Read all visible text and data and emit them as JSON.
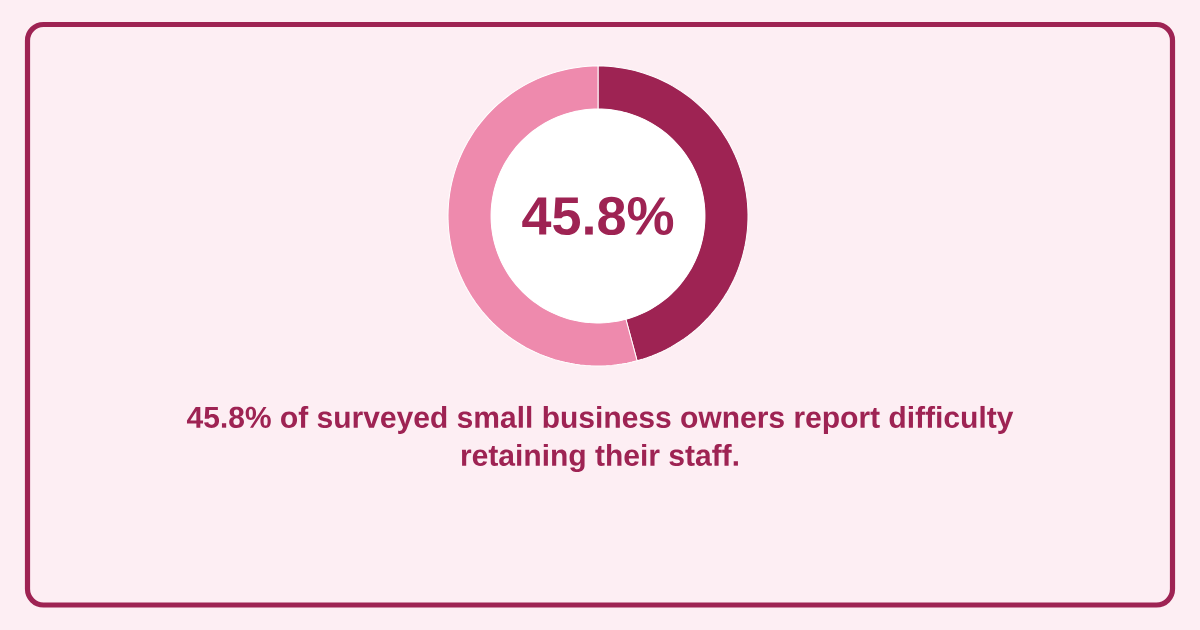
{
  "chart_data": {
    "type": "donut",
    "categories": [
      null,
      null
    ],
    "values": [
      45.8,
      54.2
    ],
    "colors": [
      "#9e2353",
      "#ee8aad"
    ],
    "annotations": [
      "45.8%",
      "45.8% of surveyed small business owners report difficulty retaining their staff."
    ]
  }
}
